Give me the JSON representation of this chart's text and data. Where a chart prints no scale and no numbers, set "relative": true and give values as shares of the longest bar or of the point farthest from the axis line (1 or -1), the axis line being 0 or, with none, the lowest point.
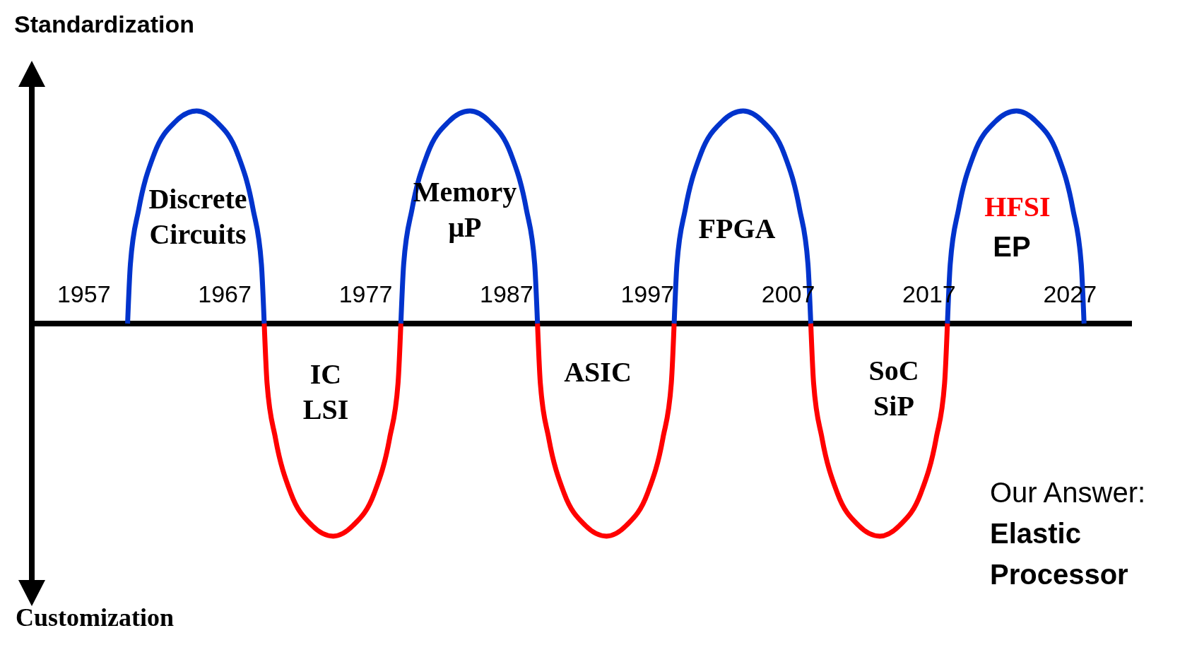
{
  "chart_data": {
    "type": "line",
    "relative": true,
    "ylabel": "Standardization",
    "xlim": [
      1953.3,
      2031.4
    ],
    "xticks": [
      1957,
      1967,
      1977,
      1987,
      1997,
      2007,
      2017,
      2027
    ],
    "series": [
      {
        "color": "#0033cc",
        "x": [
          1960.1,
          1960.3,
          1960.9,
          1962.0,
          1963.5,
          1965.0,
          1966.4,
          1967.9,
          1969.0,
          1969.6,
          1969.8,
          1974.7,
          1979.5,
          1979.7,
          1980.3,
          1981.4,
          1982.9,
          1984.4,
          1985.8,
          1987.3,
          1988.4,
          1989.0,
          1989.2,
          1994.1,
          1998.9,
          1999.1,
          1999.7,
          2000.8,
          2002.3,
          2003.8,
          2005.2,
          2006.7,
          2007.8,
          2008.4,
          2008.6,
          2013.5,
          2018.3,
          2018.5,
          2019.1,
          2020.2,
          2021.7,
          2023.2,
          2024.6,
          2026.1,
          2027.2,
          2027.8,
          2028.0
        ],
        "values": [
          0,
          0.28,
          0.54,
          0.8,
          0.95,
          1,
          0.95,
          0.8,
          0.54,
          0.28,
          0,
          null,
          0,
          0.28,
          0.54,
          0.8,
          0.95,
          1,
          0.95,
          0.8,
          0.54,
          0.28,
          0,
          null,
          0,
          0.28,
          0.54,
          0.8,
          0.95,
          1,
          0.95,
          0.8,
          0.54,
          0.28,
          0,
          null,
          0,
          0.28,
          0.54,
          0.8,
          0.95,
          1,
          0.95,
          0.8,
          0.54,
          0.28,
          0
        ]
      },
      {
        "color": "#ff0000",
        "x": [
          1969.8,
          1970.0,
          1970.6,
          1971.7,
          1973.2,
          1974.7,
          1976.1,
          1977.6,
          1978.7,
          1979.3,
          1979.5,
          1984.4,
          1989.2,
          1989.4,
          1990.0,
          1991.1,
          1992.6,
          1994.1,
          1995.5,
          1997.0,
          1998.1,
          1998.7,
          1998.9,
          2003.8,
          2008.6,
          2008.8,
          2009.4,
          2010.5,
          2012.0,
          2013.5,
          2014.9,
          2016.4,
          2017.5,
          2018.1,
          2018.3
        ],
        "values": [
          0,
          -0.28,
          -0.54,
          -0.8,
          -0.95,
          -1,
          -0.95,
          -0.8,
          -0.54,
          -0.28,
          0,
          null,
          0,
          -0.28,
          -0.54,
          -0.8,
          -0.95,
          -1,
          -0.95,
          -0.8,
          -0.54,
          -0.28,
          0,
          null,
          0,
          -0.28,
          -0.54,
          -0.8,
          -0.95,
          -1,
          -0.95,
          -0.8,
          -0.54,
          -0.28,
          0
        ]
      }
    ],
    "annotations": [
      "Discrete\nCircuits",
      "IC\nLSI",
      "Memory\nμP",
      "ASIC",
      "FPGA",
      "SoC\nSiP",
      "HFSI",
      "EP",
      "Customization",
      "Our Answer:\nElastic\nProcessor"
    ]
  }
}
